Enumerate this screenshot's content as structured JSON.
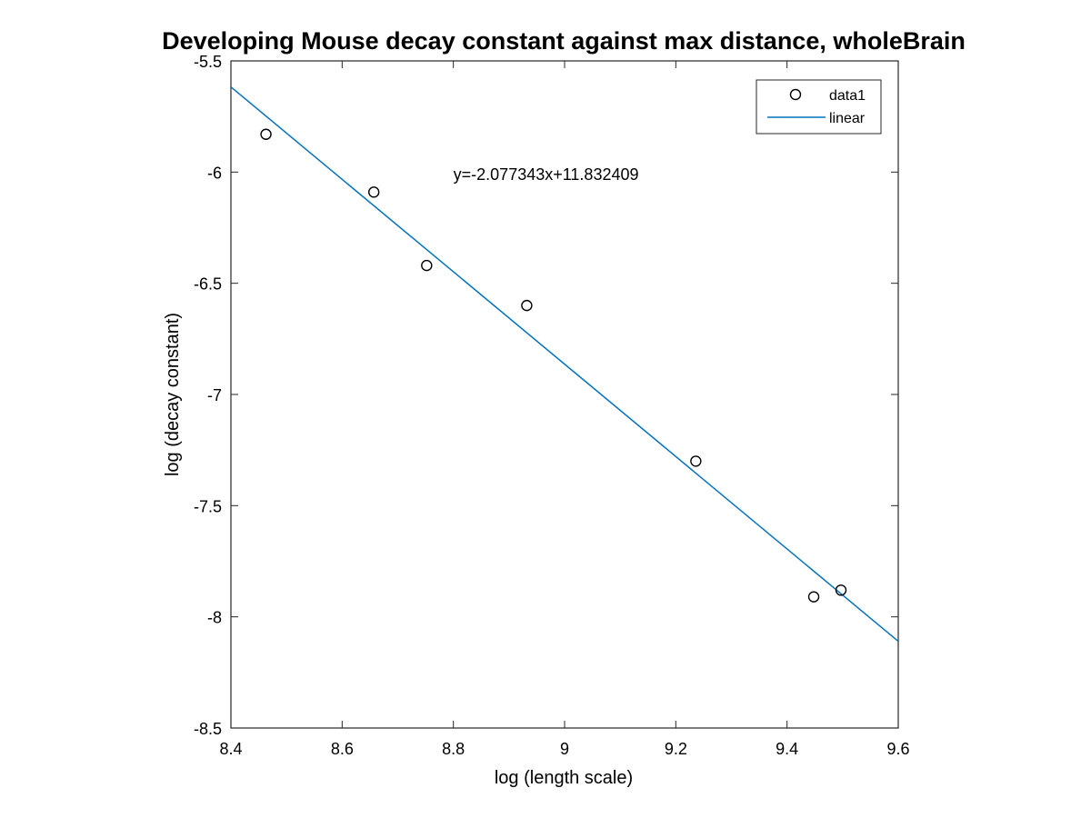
{
  "chart_data": {
    "type": "scatter",
    "title": "Developing Mouse decay constant against max distance, wholeBrain",
    "xlabel": "log (length scale)",
    "ylabel": "log (decay constant)",
    "xlim": [
      8.4,
      9.6
    ],
    "ylim": [
      -8.5,
      -5.5
    ],
    "xticks": [
      8.4,
      8.6,
      8.8,
      9.0,
      9.2,
      9.4,
      9.6
    ],
    "xtick_labels": [
      "8.4",
      "8.6",
      "8.8",
      "9",
      "9.2",
      "9.4",
      "9.6"
    ],
    "yticks": [
      -5.5,
      -6.0,
      -6.5,
      -7.0,
      -7.5,
      -8.0,
      -8.5
    ],
    "ytick_labels": [
      "-5.5",
      "-6",
      "-6.5",
      "-7",
      "-7.5",
      "-8",
      "-8.5"
    ],
    "grid": false,
    "legend_position": "top-right",
    "series": [
      {
        "name": "data1",
        "kind": "scatter",
        "marker": "open-circle",
        "color": "#000000",
        "x": [
          8.463,
          8.657,
          8.752,
          8.932,
          9.236,
          9.448,
          9.497
        ],
        "y": [
          -5.83,
          -6.09,
          -6.42,
          -6.6,
          -7.3,
          -7.91,
          -7.88
        ]
      },
      {
        "name": "linear",
        "kind": "line",
        "color": "#0072BD",
        "slope": -2.077343,
        "intercept": 11.832409
      }
    ],
    "annotations": [
      {
        "text": "y=-2.077343x+11.832409",
        "x": 8.8,
        "y": -6.01
      }
    ]
  }
}
